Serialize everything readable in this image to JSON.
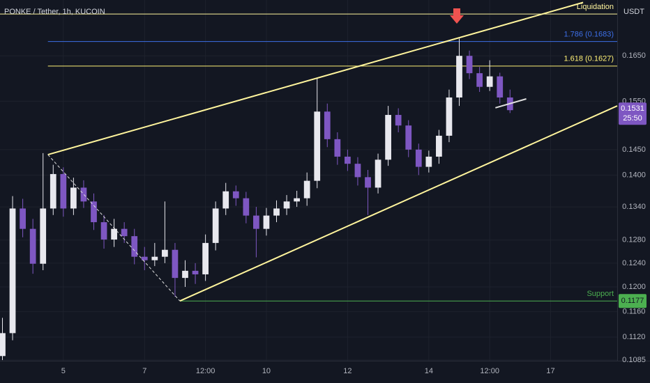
{
  "chart_data": {
    "type": "candlestick",
    "title": "PONKE / Tether, 1h, KUCOIN",
    "currency": "USDT",
    "log_scale": true,
    "grid": true,
    "up_color": "#e8e8ee",
    "down_color": "#7e57c2",
    "xlim": [
      3.44,
      18.64
    ],
    "xticks": [
      5,
      7,
      {
        "value": 8.5,
        "label": "12:00"
      },
      10,
      12,
      14,
      {
        "value": 15.5,
        "label": "12:00"
      },
      17
    ],
    "ylim": [
      0.1084,
      0.1782
    ],
    "yticks": [
      {
        "value": 0.165,
        "label": "0.1650"
      },
      {
        "value": 0.155,
        "label": "0.1550"
      },
      {
        "value": 0.145,
        "label": "0.1450"
      },
      {
        "value": 0.14,
        "label": "0.1400"
      },
      {
        "value": 0.134,
        "label": "0.1340"
      },
      {
        "value": 0.128,
        "label": "0.1280"
      },
      {
        "value": 0.124,
        "label": "0.1240"
      },
      {
        "value": 0.12,
        "label": "0.1200"
      },
      {
        "value": 0.116,
        "label": "0.1160"
      },
      {
        "value": 0.112,
        "label": "0.1120"
      },
      0.1085
    ],
    "x": [
      3.5,
      3.75,
      4,
      4.25,
      4.5,
      4.75,
      5,
      5.25,
      5.5,
      5.75,
      6,
      6.25,
      6.5,
      6.75,
      7,
      7.25,
      7.5,
      7.75,
      8,
      8.25,
      8.5,
      8.75,
      9,
      9.25,
      9.5,
      9.75,
      10,
      10.25,
      10.5,
      10.75,
      11,
      11.25,
      11.5,
      11.75,
      12,
      12.25,
      12.5,
      12.75,
      13,
      13.25,
      13.5,
      13.75,
      14,
      14.25,
      14.5,
      14.75,
      15,
      15.25,
      15.5,
      15.75,
      16
    ],
    "open": [
      0.1091,
      0.1126,
      0.1337,
      0.13,
      0.1239,
      0.1337,
      0.1402,
      0.1337,
      0.1376,
      0.135,
      0.1312,
      0.1281,
      0.13,
      0.1287,
      0.1251,
      0.1245,
      0.1251,
      0.1263,
      0.1215,
      0.1227,
      0.1221,
      0.1275,
      0.1337,
      0.1369,
      0.1356,
      0.1324,
      0.13,
      0.1324,
      0.1337,
      0.135,
      0.1356,
      0.1389,
      0.1528,
      0.1471,
      0.1436,
      0.1422,
      0.1396,
      0.1376,
      0.143,
      0.1521,
      0.1499,
      0.145,
      0.1416,
      0.1436,
      0.1478,
      0.1558,
      0.165,
      0.1611,
      0.1581,
      0.1604,
      0.1558
    ],
    "high": [
      0.115,
      0.136,
      0.1355,
      0.1318,
      0.1443,
      0.142,
      0.1415,
      0.1395,
      0.139,
      0.1365,
      0.1325,
      0.1318,
      0.1312,
      0.13,
      0.1268,
      0.1275,
      0.135,
      0.1275,
      0.1245,
      0.124,
      0.129,
      0.135,
      0.1385,
      0.138,
      0.1368,
      0.134,
      0.1338,
      0.1352,
      0.1362,
      0.137,
      0.1405,
      0.1599,
      0.1545,
      0.1485,
      0.145,
      0.1435,
      0.141,
      0.1442,
      0.154,
      0.1535,
      0.151,
      0.1462,
      0.1448,
      0.149,
      0.1575,
      0.169,
      0.1662,
      0.1625,
      0.164,
      0.1612,
      0.1575
    ],
    "low": [
      0.1085,
      0.1115,
      0.1285,
      0.1222,
      0.1228,
      0.1325,
      0.1322,
      0.1325,
      0.1338,
      0.1298,
      0.1265,
      0.1268,
      0.1275,
      0.1238,
      0.1228,
      0.1235,
      0.124,
      0.1184,
      0.12,
      0.1205,
      0.121,
      0.1262,
      0.1325,
      0.1342,
      0.131,
      0.125,
      0.1288,
      0.1312,
      0.1325,
      0.134,
      0.1342,
      0.1375,
      0.1455,
      0.142,
      0.1408,
      0.138,
      0.1325,
      0.1365,
      0.1418,
      0.1485,
      0.1435,
      0.14,
      0.1405,
      0.1422,
      0.1465,
      0.154,
      0.1598,
      0.157,
      0.1572,
      0.1545,
      0.1525
    ],
    "close": [
      0.1126,
      0.1337,
      0.13,
      0.1239,
      0.1337,
      0.1402,
      0.1337,
      0.1376,
      0.135,
      0.1312,
      0.1281,
      0.13,
      0.1287,
      0.1251,
      0.1245,
      0.1251,
      0.1263,
      0.1215,
      0.1227,
      0.1221,
      0.1275,
      0.1337,
      0.1369,
      0.1356,
      0.1324,
      0.13,
      0.1324,
      0.1337,
      0.135,
      0.1356,
      0.1389,
      0.1528,
      0.1471,
      0.1436,
      0.1422,
      0.1396,
      0.1376,
      0.143,
      0.1521,
      0.1499,
      0.145,
      0.1416,
      0.1436,
      0.1478,
      0.1558,
      0.165,
      0.1611,
      0.1581,
      0.1604,
      0.1558,
      0.1531
    ],
    "levels": [
      {
        "label": "Liquidation",
        "value": 0.1748,
        "color": "#fff59d"
      },
      {
        "label": "1.786 (0.1683)",
        "value": 0.1683,
        "color": "#3d6fe8",
        "from": 4.62
      },
      {
        "label": "1.618 (0.1627)",
        "value": 0.1627,
        "color": "#fff176",
        "from": 4.62
      },
      {
        "label": "Support",
        "value": 0.1177,
        "color": "#4caf50",
        "from": 7.87,
        "axis_badge": true
      }
    ],
    "lines": [
      {
        "points": [
          [
            4.62,
            0.144
          ],
          [
            17.8,
            0.1776
          ]
        ],
        "color": "#fff59d",
        "style": "solid"
      },
      {
        "points": [
          [
            7.87,
            0.1177
          ],
          [
            18.64,
            0.154
          ]
        ],
        "color": "#fff59d",
        "style": "solid"
      },
      {
        "points": [
          [
            4.62,
            0.144
          ],
          [
            7.87,
            0.1177
          ]
        ],
        "color": "#e0e0e0",
        "style": "dashed"
      },
      {
        "points": [
          [
            15.64,
            0.1536
          ],
          [
            16.4,
            0.1555
          ]
        ],
        "color": "#e0e0e0",
        "style": "solid"
      }
    ],
    "last_price": {
      "value": 0.1531,
      "countdown": "25:50",
      "color": "#7e57c2"
    }
  }
}
